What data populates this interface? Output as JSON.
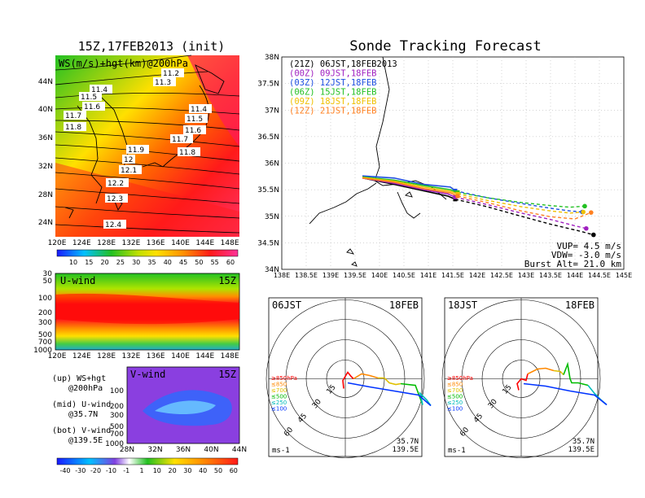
{
  "chart_data": [
    {
      "type": "heatmap",
      "title": "15Z,17FEB2013 (init)",
      "subtitle": "WS(m/s)+hgt(km)@200hPa",
      "x_ticks": [
        "120E",
        "124E",
        "128E",
        "132E",
        "136E",
        "140E",
        "144E",
        "148E"
      ],
      "y_ticks": [
        "44N",
        "40N",
        "36N",
        "32N",
        "28N",
        "24N"
      ],
      "contour_labels": [
        "11.2",
        "11.3",
        "11.4",
        "11.5",
        "11.6",
        "11.7",
        "11.8",
        "11.4",
        "11.5",
        "11.6",
        "11.7",
        "11.8",
        "11.9",
        "12",
        "12.1",
        "12.2",
        "12.3",
        "12.4"
      ],
      "colorbar": {
        "ticks": [
          "10",
          "15",
          "20",
          "25",
          "30",
          "35",
          "40",
          "45",
          "50",
          "55",
          "60"
        ]
      }
    },
    {
      "type": "heatmap",
      "title": "U-wind",
      "time": "15Z",
      "y_ticks": [
        "30",
        "50",
        "100",
        "200",
        "300",
        "500",
        "700",
        "1000"
      ],
      "x_ticks": [
        "120E",
        "124E",
        "128E",
        "132E",
        "136E",
        "140E",
        "144E",
        "148E"
      ]
    },
    {
      "type": "heatmap",
      "title": "V-wind",
      "time": "15Z",
      "y_ticks": [
        "100",
        "200",
        "300",
        "500",
        "700",
        "1000"
      ],
      "x_ticks": [
        "28N",
        "32N",
        "36N",
        "40N",
        "44N"
      ],
      "colorbar": {
        "ticks": [
          "-40",
          "-30",
          "-20",
          "-10",
          "-1",
          "1",
          "10",
          "20",
          "30",
          "40",
          "50",
          "60"
        ]
      }
    },
    {
      "type": "line",
      "title": "Sonde Tracking Forecast",
      "x_ticks": [
        "138E",
        "138.5E",
        "139E",
        "139.5E",
        "140E",
        "140.5E",
        "141E",
        "141.5E",
        "142E",
        "142.5E",
        "143E",
        "143.5E",
        "144E",
        "144.5E",
        "145E"
      ],
      "y_ticks": [
        "34N",
        "34.5N",
        "35N",
        "35.5N",
        "36N",
        "36.5N",
        "37N",
        "37.5N",
        "38N"
      ],
      "xlim": [
        138,
        145
      ],
      "ylim": [
        34,
        38
      ],
      "legend": [
        {
          "label": "(21Z) 06JST,18FEB2013",
          "color": "#000000"
        },
        {
          "label": "(00Z) 09JST,18FEB",
          "color": "#a020c0"
        },
        {
          "label": "(03Z) 12JST,18FEB",
          "color": "#1e4fe0"
        },
        {
          "label": "(06Z) 15JST,18FEB",
          "color": "#22c022"
        },
        {
          "label": "(09Z) 18JST,18FEB",
          "color": "#f0c000"
        },
        {
          "label": "(12Z) 21JST,18FEB",
          "color": "#ff8020"
        }
      ],
      "series": [
        {
          "color": "#000000",
          "x": [
            139.65,
            140.3,
            140.9,
            141.4,
            141.55,
            142.2,
            142.9,
            143.5,
            144.1,
            144.38
          ],
          "y": [
            35.72,
            35.6,
            35.48,
            35.38,
            35.32,
            35.18,
            35.0,
            34.85,
            34.72,
            34.65
          ]
        },
        {
          "color": "#a020c0",
          "x": [
            139.65,
            140.3,
            140.9,
            141.4,
            141.55,
            142.2,
            142.9,
            143.5,
            144.0,
            144.23
          ],
          "y": [
            35.72,
            35.62,
            35.5,
            35.42,
            35.36,
            35.22,
            35.06,
            34.94,
            34.82,
            34.77
          ]
        },
        {
          "color": "#1e4fe0",
          "x": [
            139.65,
            140.3,
            140.9,
            141.45,
            141.55,
            142.2,
            142.9,
            143.5,
            143.9,
            144.15
          ],
          "y": [
            35.76,
            35.72,
            35.6,
            35.55,
            35.48,
            35.35,
            35.24,
            35.15,
            35.1,
            35.08
          ]
        },
        {
          "color": "#22c022",
          "x": [
            139.65,
            140.3,
            140.9,
            141.45,
            141.6,
            142.2,
            142.9,
            143.5,
            143.9,
            144.2
          ],
          "y": [
            35.74,
            35.68,
            35.58,
            35.5,
            35.45,
            35.35,
            35.26,
            35.2,
            35.17,
            35.19
          ]
        },
        {
          "color": "#f0c000",
          "x": [
            139.65,
            140.3,
            140.9,
            141.45,
            141.6,
            142.2,
            142.9,
            143.5,
            143.9,
            144.17
          ],
          "y": [
            35.73,
            35.66,
            35.55,
            35.47,
            35.42,
            35.3,
            35.18,
            35.1,
            35.06,
            35.08
          ]
        },
        {
          "color": "#ff8020",
          "x": [
            139.65,
            140.3,
            140.9,
            141.45,
            141.6,
            142.2,
            142.9,
            143.5,
            144.0,
            144.33
          ],
          "y": [
            35.72,
            35.64,
            35.52,
            35.44,
            35.38,
            35.26,
            35.1,
            34.99,
            34.95,
            35.07
          ]
        }
      ],
      "info": {
        "vup": "VUP= 4.5 m/s",
        "vdw": "VDW= -3.0 m/s",
        "burst": "Burst Alt= 21.0 km"
      }
    },
    {
      "type": "line",
      "title": "06JST",
      "date": "18FEB",
      "location": [
        "35.7N",
        "139.5E"
      ],
      "unit": "ms-1",
      "ring_labels": [
        "15",
        "30",
        "45",
        "60"
      ],
      "levels": [
        {
          "label": "≥850hPa",
          "color": "#ff0000"
        },
        {
          "label": "≤850",
          "color": "#ff8800"
        },
        {
          "label": "≤700",
          "color": "#e0c000"
        },
        {
          "label": "≤500",
          "color": "#00bb00"
        },
        {
          "label": "≤250",
          "color": "#00bbbb"
        },
        {
          "label": "≤100",
          "color": "#0033ff"
        }
      ]
    },
    {
      "type": "line",
      "title": "18JST",
      "date": "18FEB",
      "location": [
        "35.7N",
        "139.5E"
      ],
      "unit": "ms-1",
      "ring_labels": [
        "15",
        "30",
        "45",
        "60"
      ],
      "levels": [
        {
          "label": "≥850hPa",
          "color": "#ff0000"
        },
        {
          "label": "≤850",
          "color": "#ff8800"
        },
        {
          "label": "≤700",
          "color": "#e0c000"
        },
        {
          "label": "≤500",
          "color": "#00bb00"
        },
        {
          "label": "≤250",
          "color": "#00bbbb"
        },
        {
          "label": "≤100",
          "color": "#0033ff"
        }
      ]
    }
  ],
  "notes": {
    "up": [
      "(up) WS+hgt",
      "@200hPa"
    ],
    "mid": [
      "(mid) U-wind",
      "@35.7N"
    ],
    "bot": [
      "(bot) V-wind",
      "@139.5E"
    ]
  }
}
